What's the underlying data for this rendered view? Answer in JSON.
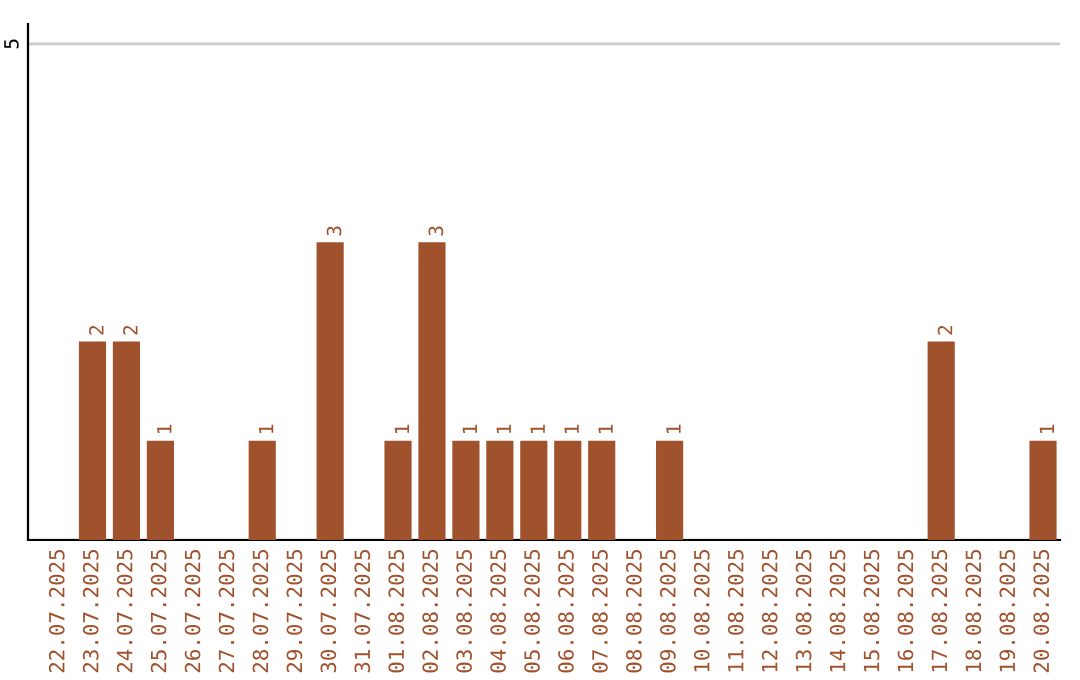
{
  "chart_data": {
    "type": "bar",
    "categories": [
      "22.07.2025",
      "23.07.2025",
      "24.07.2025",
      "25.07.2025",
      "26.07.2025",
      "27.07.2025",
      "28.07.2025",
      "29.07.2025",
      "30.07.2025",
      "31.07.2025",
      "01.08.2025",
      "02.08.2025",
      "03.08.2025",
      "04.08.2025",
      "05.08.2025",
      "06.08.2025",
      "07.08.2025",
      "08.08.2025",
      "09.08.2025",
      "10.08.2025",
      "11.08.2025",
      "12.08.2025",
      "13.08.2025",
      "14.08.2025",
      "15.08.2025",
      "16.08.2025",
      "17.08.2025",
      "18.08.2025",
      "19.08.2025",
      "20.08.2025"
    ],
    "values": [
      0,
      2,
      2,
      1,
      0,
      0,
      1,
      0,
      3,
      0,
      1,
      3,
      1,
      1,
      1,
      1,
      1,
      0,
      1,
      0,
      0,
      0,
      0,
      0,
      0,
      0,
      2,
      0,
      0,
      1
    ],
    "value_labels": [
      null,
      "2",
      "2",
      "1",
      null,
      null,
      "1",
      null,
      "3",
      null,
      "1",
      "3",
      "1",
      "1",
      "1",
      "1",
      "1",
      null,
      "1",
      null,
      null,
      null,
      null,
      null,
      null,
      null,
      "2",
      null,
      null,
      "1"
    ],
    "color": "#a0522d",
    "ylim": [
      0,
      5
    ],
    "yticks": [
      {
        "value": 0,
        "label": null
      },
      5
    ],
    "grid": "y"
  }
}
